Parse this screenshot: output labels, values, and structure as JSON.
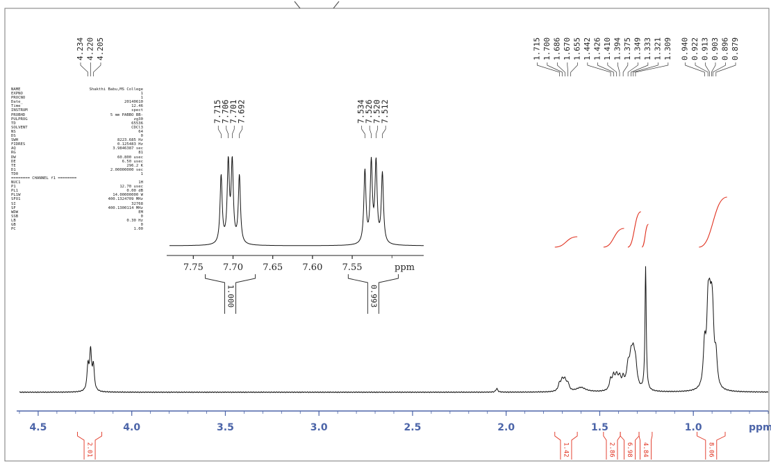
{
  "parameters": {
    "rows": [
      {
        "key": "NAME",
        "value": "Shakthi Babu,MS College"
      },
      {
        "key": "EXPNO",
        "value": "1"
      },
      {
        "key": "PROCNO",
        "value": "1"
      },
      {
        "key": "Date_",
        "value": "20140610"
      },
      {
        "key": "Time",
        "value": "12.46"
      },
      {
        "key": "INSTRUM",
        "value": "spect"
      },
      {
        "key": "PROBHD",
        "value": "5 mm PABBO BB-"
      },
      {
        "key": "PULPROG",
        "value": "zg30"
      },
      {
        "key": "TD",
        "value": "65536"
      },
      {
        "key": "SOLVENT",
        "value": "CDCl3"
      },
      {
        "key": "NS",
        "value": "64"
      },
      {
        "key": "DS",
        "value": "0"
      },
      {
        "key": "SWH",
        "value": "8223.685 Hz"
      },
      {
        "key": "FIDRES",
        "value": "0.125483 Hz"
      },
      {
        "key": "AQ",
        "value": "3.9846387 sec"
      },
      {
        "key": "RG",
        "value": "81"
      },
      {
        "key": "DW",
        "value": "60.800 usec"
      },
      {
        "key": "DE",
        "value": "6.50 usec"
      },
      {
        "key": "TE",
        "value": "296.2 K"
      },
      {
        "key": "D1",
        "value": "2.00000000 sec"
      },
      {
        "key": "TD0",
        "value": "1"
      }
    ],
    "channel_header": "======== CHANNEL f1 ========",
    "channel_rows": [
      {
        "key": "NUC1",
        "value": "1H"
      },
      {
        "key": "P1",
        "value": "12.70 usec"
      },
      {
        "key": "PL1",
        "value": "0.00 dB"
      },
      {
        "key": "PL1W",
        "value": "14.00000000 W"
      },
      {
        "key": "SFO1",
        "value": "400.1324709 MHz"
      },
      {
        "key": "SI",
        "value": "32768"
      },
      {
        "key": "SF",
        "value": "400.1300114 MHz"
      },
      {
        "key": "WDW",
        "value": "EM"
      },
      {
        "key": "SSB",
        "value": "0"
      },
      {
        "key": "LB",
        "value": "0.30 Hz"
      },
      {
        "key": "GB",
        "value": "0"
      },
      {
        "key": "PC",
        "value": "1.00"
      }
    ]
  },
  "colors": {
    "spectrum": "#111111",
    "integral": "#e0301e",
    "axis": "#4b64a8",
    "frame": "#777777"
  },
  "chart_data": [
    {
      "type": "line",
      "name": "main-spectrum",
      "xlabel": "ppm",
      "xlim": [
        4.6,
        0.6
      ],
      "ticks": [
        {
          "v": 4.5,
          "label": "4.5"
        },
        {
          "v": 4.0,
          "label": "4.0"
        },
        {
          "v": 3.5,
          "label": "3.5"
        },
        {
          "v": 3.0,
          "label": "3.0"
        },
        {
          "v": 2.5,
          "label": "2.5"
        },
        {
          "v": 2.0,
          "label": "2.0"
        },
        {
          "v": 1.5,
          "label": "1.5"
        },
        {
          "v": 1.0,
          "label": "1.0"
        }
      ],
      "peaks": [
        {
          "ppm": 4.234,
          "h": 0.17,
          "w": 0.006
        },
        {
          "ppm": 4.22,
          "h": 0.27,
          "w": 0.006
        },
        {
          "ppm": 4.205,
          "h": 0.17,
          "w": 0.006
        },
        {
          "ppm": 2.05,
          "h": 0.025,
          "w": 0.006
        },
        {
          "ppm": 1.715,
          "h": 0.05,
          "w": 0.008
        },
        {
          "ppm": 1.7,
          "h": 0.07,
          "w": 0.008
        },
        {
          "ppm": 1.686,
          "h": 0.07,
          "w": 0.008
        },
        {
          "ppm": 1.67,
          "h": 0.05,
          "w": 0.008
        },
        {
          "ppm": 1.6,
          "h": 0.03,
          "w": 0.03
        },
        {
          "ppm": 1.442,
          "h": 0.07,
          "w": 0.008
        },
        {
          "ppm": 1.426,
          "h": 0.09,
          "w": 0.008
        },
        {
          "ppm": 1.41,
          "h": 0.09,
          "w": 0.008
        },
        {
          "ppm": 1.394,
          "h": 0.08,
          "w": 0.008
        },
        {
          "ppm": 1.375,
          "h": 0.07,
          "w": 0.008
        },
        {
          "ppm": 1.349,
          "h": 0.14,
          "w": 0.01
        },
        {
          "ppm": 1.333,
          "h": 0.17,
          "w": 0.01
        },
        {
          "ppm": 1.321,
          "h": 0.18,
          "w": 0.01
        },
        {
          "ppm": 1.309,
          "h": 0.15,
          "w": 0.01
        },
        {
          "ppm": 1.255,
          "h": 0.85,
          "w": 0.004
        },
        {
          "ppm": 0.94,
          "h": 0.28,
          "w": 0.008
        },
        {
          "ppm": 0.922,
          "h": 0.45,
          "w": 0.008
        },
        {
          "ppm": 0.913,
          "h": 0.36,
          "w": 0.008
        },
        {
          "ppm": 0.903,
          "h": 0.35,
          "w": 0.008
        },
        {
          "ppm": 0.896,
          "h": 0.3,
          "w": 0.008
        },
        {
          "ppm": 0.879,
          "h": 0.2,
          "w": 0.008
        }
      ],
      "integrals": [
        {
          "from": 4.29,
          "to": 4.16,
          "label": "2.01"
        },
        {
          "from": 1.74,
          "to": 1.62,
          "label": "1.42"
        },
        {
          "from": 1.48,
          "to": 1.39,
          "label": "2.86"
        },
        {
          "from": 1.39,
          "to": 1.29,
          "label": "6.98"
        },
        {
          "from": 1.29,
          "to": 1.22,
          "label": "4.84"
        },
        {
          "from": 0.98,
          "to": 0.83,
          "label": "8.06"
        }
      ],
      "integral_curves": [
        {
          "from": 1.74,
          "to": 1.62,
          "rise": 0.1
        },
        {
          "from": 1.48,
          "to": 1.37,
          "rise": 0.18
        },
        {
          "from": 1.35,
          "to": 1.28,
          "rise": 0.34
        },
        {
          "from": 1.275,
          "to": 1.24,
          "rise": 0.22
        },
        {
          "from": 0.97,
          "to": 0.82,
          "rise": 0.48
        }
      ],
      "peak_label_groups": [
        {
          "peaks": [
            4.234,
            4.22,
            4.205
          ],
          "labels": [
            "4.234",
            "4.220",
            "4.205"
          ]
        },
        {
          "peaks": [
            1.715,
            1.7,
            1.686,
            1.67,
            1.655,
            1.442,
            1.426,
            1.41,
            1.394,
            1.375,
            1.349,
            1.333,
            1.321,
            1.309
          ],
          "labels": [
            "1.715",
            "1.700",
            "1.686",
            "1.670",
            "1.655",
            "1.442",
            "1.426",
            "1.410",
            "1.394",
            "1.375",
            "1.349",
            "1.333",
            "1.321",
            "1.309"
          ]
        },
        {
          "peaks": [
            0.94,
            0.922,
            0.913,
            0.903,
            0.896,
            0.879
          ],
          "labels": [
            "0.940",
            "0.922",
            "0.913",
            "0.903",
            "0.896",
            "0.879"
          ]
        }
      ]
    },
    {
      "type": "line",
      "name": "aromatic-inset",
      "xlabel": "ppm",
      "xlim": [
        7.78,
        7.46
      ],
      "ticks": [
        {
          "v": 7.75,
          "label": "7.75"
        },
        {
          "v": 7.7,
          "label": "7.70"
        },
        {
          "v": 7.65,
          "label": "7.65"
        },
        {
          "v": 7.6,
          "label": "7.60"
        },
        {
          "v": 7.55,
          "label": "7.55"
        }
      ],
      "peaks": [
        {
          "ppm": 7.715,
          "h": 0.7,
          "w": 0.0016
        },
        {
          "ppm": 7.706,
          "h": 0.82,
          "w": 0.0016
        },
        {
          "ppm": 7.701,
          "h": 0.82,
          "w": 0.0016
        },
        {
          "ppm": 7.692,
          "h": 0.7,
          "w": 0.0016
        },
        {
          "ppm": 7.534,
          "h": 0.75,
          "w": 0.0016
        },
        {
          "ppm": 7.526,
          "h": 0.82,
          "w": 0.0016
        },
        {
          "ppm": 7.52,
          "h": 0.82,
          "w": 0.0016
        },
        {
          "ppm": 7.512,
          "h": 0.72,
          "w": 0.0016
        }
      ],
      "integrals": [
        {
          "from": 7.735,
          "to": 7.672,
          "label": "1.000"
        },
        {
          "from": 7.555,
          "to": 7.492,
          "label": "0.993"
        }
      ],
      "peak_label_groups": [
        {
          "peaks": [
            7.715,
            7.706,
            7.701,
            7.692
          ],
          "labels": [
            "7.715",
            "7.706",
            "7.701",
            "7.692"
          ]
        },
        {
          "peaks": [
            7.534,
            7.526,
            7.52,
            7.512
          ],
          "labels": [
            "7.534",
            "7.526",
            "7.520",
            "7.512"
          ]
        }
      ]
    }
  ]
}
